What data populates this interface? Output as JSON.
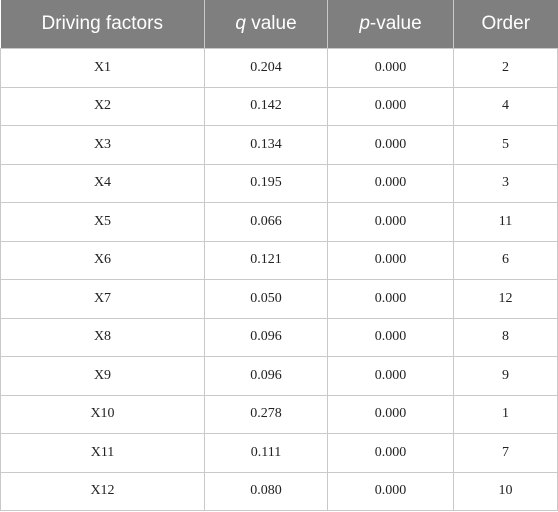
{
  "table": {
    "headers": {
      "col1": "Driving factors",
      "col2_var": "q",
      "col2_rest": " value",
      "col3_var": "p",
      "col3_rest": "-value",
      "col4": "Order"
    },
    "rows": [
      [
        "X1",
        "0.204",
        "0.000",
        "2"
      ],
      [
        "X2",
        "0.142",
        "0.000",
        "4"
      ],
      [
        "X3",
        "0.134",
        "0.000",
        "5"
      ],
      [
        "X4",
        "0.195",
        "0.000",
        "3"
      ],
      [
        "X5",
        "0.066",
        "0.000",
        "11"
      ],
      [
        "X6",
        "0.121",
        "0.000",
        "6"
      ],
      [
        "X7",
        "0.050",
        "0.000",
        "12"
      ],
      [
        "X8",
        "0.096",
        "0.000",
        "8"
      ],
      [
        "X9",
        "0.096",
        "0.000",
        "9"
      ],
      [
        "X10",
        "0.278",
        "0.000",
        "1"
      ],
      [
        "X11",
        "0.111",
        "0.000",
        "7"
      ],
      [
        "X12",
        "0.080",
        "0.000",
        "10"
      ]
    ]
  }
}
